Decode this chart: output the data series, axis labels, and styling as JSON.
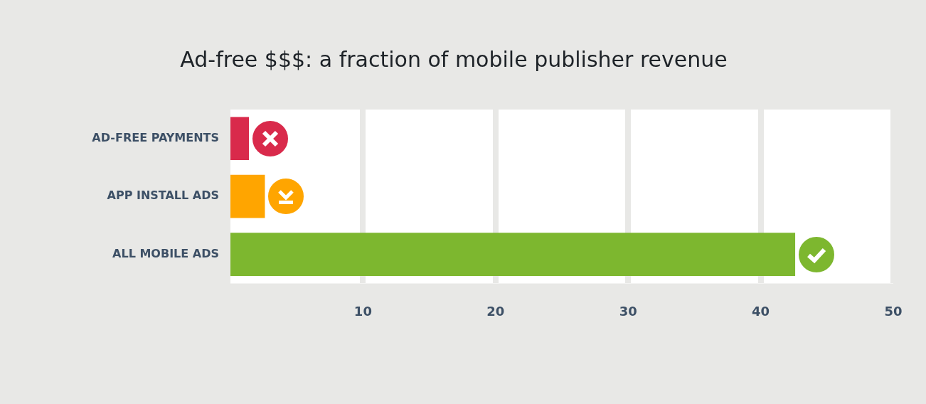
{
  "chart_data": {
    "type": "bar",
    "orientation": "horizontal",
    "title": "Ad-free $$$: a fraction of mobile publisher revenue",
    "categories": [
      "AD-FREE PAYMENTS",
      "APP INSTALL ADS",
      "ALL MOBILE ADS"
    ],
    "values": [
      1.4,
      2.6,
      42.6
    ],
    "colors": [
      "#d92a4b",
      "#ffa500",
      "#7db72f"
    ],
    "xlim": [
      0,
      50
    ],
    "xticks": [
      10,
      20,
      30,
      40,
      50
    ],
    "grid": "x",
    "legend": false
  }
}
